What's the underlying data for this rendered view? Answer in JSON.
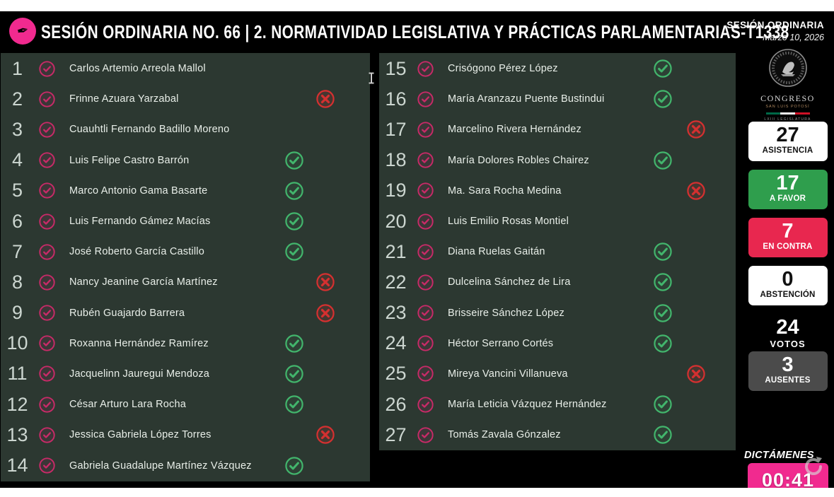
{
  "header": {
    "title": "SESIÓN ORDINARIA NO. 66 | 2. NORMATIVIDAD LEGISLATIVA Y PRÁCTICAS PARLAMENTARIAS-T1338",
    "session_type": "SESIÓN ORDINARIA",
    "session_date": "Marzo 10, 2026"
  },
  "congress_seal": {
    "org": "CONGRESO",
    "state": "SAN LUIS POTOSÍ",
    "legislature": "LXIII LEGISLATURA"
  },
  "members": [
    {
      "num": "1",
      "name": "Carlos Artemio Arreola Mallol",
      "vote": "none"
    },
    {
      "num": "2",
      "name": "Frinne Azuara Yarzabal",
      "vote": "contra"
    },
    {
      "num": "3",
      "name": "Cuauhtli Fernando Badillo Moreno",
      "vote": "none"
    },
    {
      "num": "4",
      "name": "Luis Felipe Castro Barrón",
      "vote": "favor"
    },
    {
      "num": "5",
      "name": "Marco Antonio Gama Basarte",
      "vote": "favor"
    },
    {
      "num": "6",
      "name": "Luis Fernando Gámez Macías",
      "vote": "favor"
    },
    {
      "num": "7",
      "name": "José Roberto García Castillo",
      "vote": "favor"
    },
    {
      "num": "8",
      "name": "Nancy Jeanine García Martínez",
      "vote": "contra"
    },
    {
      "num": "9",
      "name": "Rubén Guajardo Barrera",
      "vote": "contra"
    },
    {
      "num": "10",
      "name": "Roxanna Hernández Ramírez",
      "vote": "favor"
    },
    {
      "num": "11",
      "name": "Jacquelinn Jauregui Mendoza",
      "vote": "favor"
    },
    {
      "num": "12",
      "name": "César Arturo Lara Rocha",
      "vote": "favor"
    },
    {
      "num": "13",
      "name": "Jessica Gabriela López Torres",
      "vote": "contra"
    },
    {
      "num": "14",
      "name": "Gabriela Guadalupe Martínez Vázquez",
      "vote": "favor"
    },
    {
      "num": "15",
      "name": "Crisógono Pérez López",
      "vote": "favor"
    },
    {
      "num": "16",
      "name": "María Aranzazu Puente Bustindui",
      "vote": "favor"
    },
    {
      "num": "17",
      "name": "Marcelino Rivera Hernández",
      "vote": "contra"
    },
    {
      "num": "18",
      "name": "María Dolores Robles Chairez",
      "vote": "favor"
    },
    {
      "num": "19",
      "name": "Ma. Sara Rocha Medina",
      "vote": "contra"
    },
    {
      "num": "20",
      "name": "Luis Emilio Rosas Montiel",
      "vote": "none"
    },
    {
      "num": "21",
      "name": "Diana Ruelas Gaitán",
      "vote": "favor"
    },
    {
      "num": "22",
      "name": "Dulcelina Sánchez de Lira",
      "vote": "favor"
    },
    {
      "num": "23",
      "name": "Brisseire Sánchez López",
      "vote": "favor"
    },
    {
      "num": "24",
      "name": "Héctor Serrano Cortés",
      "vote": "favor"
    },
    {
      "num": "25",
      "name": "Mireya Vancini Villanueva",
      "vote": "contra"
    },
    {
      "num": "26",
      "name": "María Leticia Vázquez Hernández",
      "vote": "favor"
    },
    {
      "num": "27",
      "name": "Tomás Zavala Gónzalez",
      "vote": "favor"
    }
  ],
  "stats": [
    {
      "value": "27",
      "label": "ASISTENCIA",
      "style": "white"
    },
    {
      "value": "17",
      "label": "A FAVOR",
      "style": "green"
    },
    {
      "value": "7",
      "label": "EN CONTRA",
      "style": "red"
    },
    {
      "value": "0",
      "label": "ABSTENCIÓN",
      "style": "white"
    },
    {
      "value": "24",
      "label": "VOTOS",
      "style": "plain"
    },
    {
      "value": "3",
      "label": "AUSENTES",
      "style": "gray"
    }
  ],
  "dictamenes": {
    "label": "DICTÁMENES",
    "timer": "00:41"
  },
  "colors": {
    "accent_pink": "#f12a8f",
    "favor_green_box": "#2f9e4d",
    "contra_red_box": "#e8274f",
    "ausentes_gray": "#4b4b4b",
    "vote_green": "#42b56c",
    "vote_red": "#d53030",
    "attendance_pink": "#c92a68"
  }
}
